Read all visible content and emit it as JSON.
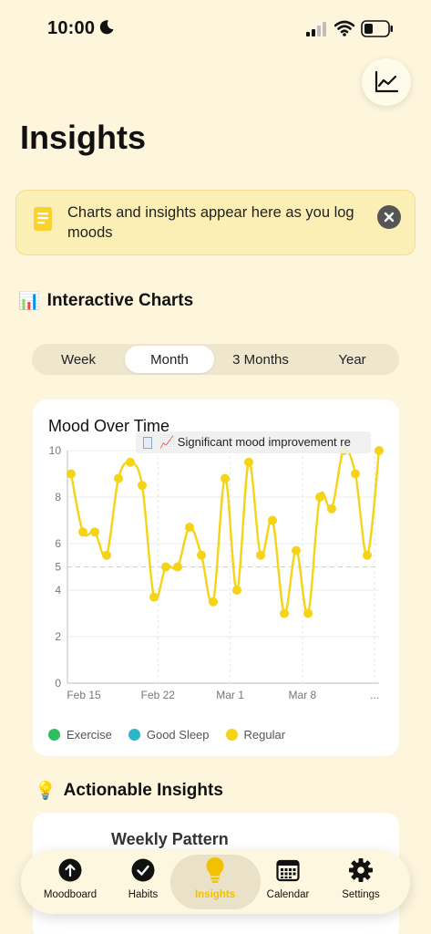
{
  "status_bar": {
    "time": "10:00"
  },
  "header": {
    "title": "Insights"
  },
  "banner": {
    "text": "Charts and insights appear here as you log moods"
  },
  "charts_section": {
    "emoji": "📊",
    "title": "Interactive Charts"
  },
  "range_tabs": [
    {
      "label": "Week",
      "active": false
    },
    {
      "label": "Month",
      "active": true
    },
    {
      "label": "3 Months",
      "active": false
    },
    {
      "label": "Year",
      "active": false
    }
  ],
  "chart_card": {
    "tooltip": "📈 Significant mood improvement re"
  },
  "chart_data": {
    "type": "line",
    "title": "Mood Over Time",
    "xlabel": "",
    "ylabel": "",
    "ylim": [
      0,
      10
    ],
    "y_ticks": [
      "0",
      "2",
      "4",
      "5",
      "6",
      "8",
      "10"
    ],
    "x_ticks": [
      "Feb 15",
      "Feb 22",
      "Mar 1",
      "Mar 8",
      "..."
    ],
    "reference_line": 5,
    "series": [
      {
        "name": "Regular",
        "color": "#F5D316",
        "values": [
          9.0,
          6.5,
          6.5,
          5.5,
          8.8,
          9.5,
          8.5,
          3.7,
          5.0,
          5.0,
          6.7,
          5.5,
          3.5,
          8.8,
          4.0,
          9.5,
          5.5,
          7.0,
          3.0,
          5.7,
          3.0,
          8.0,
          7.5,
          10.0,
          9.0,
          5.5,
          10.0
        ]
      }
    ],
    "legend": [
      {
        "label": "Exercise",
        "color": "#2DBE60"
      },
      {
        "label": "Good Sleep",
        "color": "#2FB5C8"
      },
      {
        "label": "Regular",
        "color": "#F5D316"
      }
    ]
  },
  "insights_section": {
    "emoji": "💡",
    "title": "Actionable Insights"
  },
  "insight_card": {
    "title": "Weekly Pattern"
  },
  "tab_bar": [
    {
      "label": "Moodboard",
      "icon": "arrow-up-circle-icon",
      "active": false
    },
    {
      "label": "Habits",
      "icon": "checkmark-circle-icon",
      "active": false
    },
    {
      "label": "Insights",
      "icon": "lightbulb-icon",
      "active": true
    },
    {
      "label": "Calendar",
      "icon": "calendar-icon",
      "active": false
    },
    {
      "label": "Settings",
      "icon": "gear-icon",
      "active": false
    }
  ],
  "colors": {
    "accent": "#F2C100",
    "background": "#FDF6DD"
  }
}
